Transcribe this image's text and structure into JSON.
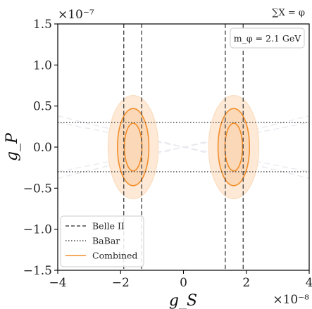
{
  "chart_data": {
    "type": "line",
    "top_right_label": "∑X = φ",
    "annotation": "m_φ = 2.1 GeV",
    "xlabel": "g_S",
    "ylabel": "g_P",
    "x_scale_label": "×10⁻⁸",
    "y_scale_label": "×10⁻⁷",
    "xlim": [
      -4,
      4
    ],
    "ylim": [
      -1.5,
      1.5
    ],
    "x_ticks": [
      -4,
      -2,
      0,
      2,
      4
    ],
    "x_tick_labels": [
      "−4",
      "−2",
      "0",
      "2",
      "4"
    ],
    "y_ticks": [
      -1.5,
      -1.0,
      -0.5,
      0.0,
      0.5,
      1.0,
      1.5
    ],
    "y_tick_labels": [
      "−1.5",
      "−1.0",
      "−0.5",
      "0.0",
      "0.5",
      "1.0",
      "1.5"
    ],
    "legend": {
      "position": "lower-left",
      "entries": [
        {
          "name": "Belle II",
          "style": "dashed",
          "color": "#4a4a4a"
        },
        {
          "name": "BaBar",
          "style": "dotted",
          "color": "#4a4a4a"
        },
        {
          "name": "Combined",
          "style": "solid",
          "color": "#f28e2b"
        }
      ]
    },
    "belle2_bounds_gS": [
      -1.9,
      -1.33,
      1.33,
      1.9
    ],
    "babar_bounds_gP": [
      0.3,
      -0.3
    ],
    "combined_regions": [
      {
        "center_gS": -1.6,
        "center_gP": 0.0,
        "contours": [
          {
            "level": "inner",
            "half_width_gS": 0.28,
            "half_height_gP": 0.29
          },
          {
            "level": "middle",
            "half_width_gS": 0.5,
            "half_height_gP": 0.47
          },
          {
            "level": "outer",
            "half_width_gS": 0.8,
            "half_height_gP": 0.63
          }
        ]
      },
      {
        "center_gS": 1.6,
        "center_gP": 0.0,
        "contours": [
          {
            "level": "inner",
            "half_width_gS": 0.28,
            "half_height_gP": 0.29
          },
          {
            "level": "middle",
            "half_width_gS": 0.5,
            "half_height_gP": 0.47
          },
          {
            "level": "outer",
            "half_width_gS": 0.8,
            "half_height_gP": 0.63
          }
        ]
      }
    ],
    "colors": {
      "combined": "#f28e2b",
      "fill_outer": "#fde9d6",
      "fill_inner": "#fbd9b8",
      "bounds": "#4a4a4a",
      "faint_band": "#e6e6ee"
    }
  }
}
